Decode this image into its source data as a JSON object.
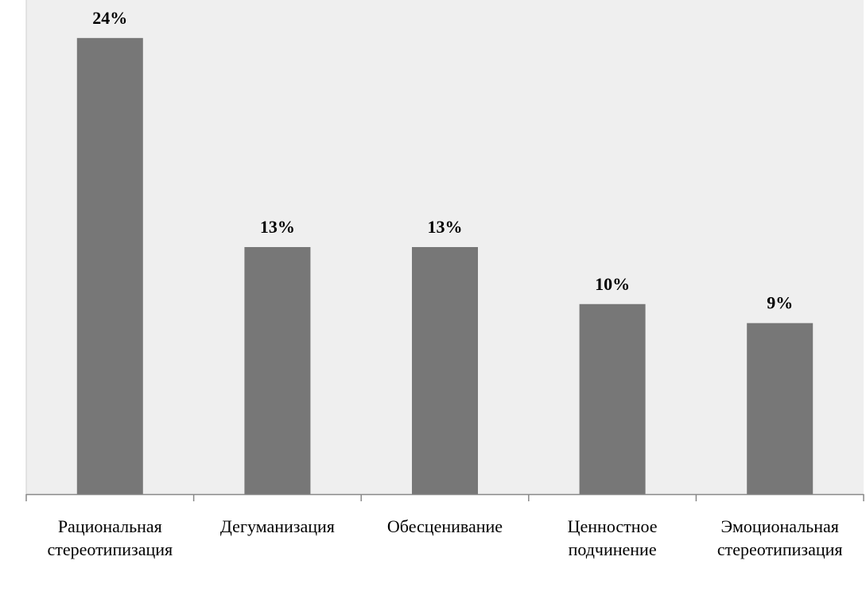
{
  "chart_data": {
    "type": "bar",
    "categories": [
      [
        "Рациональная",
        "стереотипизация"
      ],
      [
        "Дегуманизация"
      ],
      [
        "Обесценивание"
      ],
      [
        "Ценностное",
        "подчинение"
      ],
      [
        "Эмоциональная",
        "стереотипизация"
      ]
    ],
    "values": [
      24,
      13,
      13,
      10,
      9
    ],
    "data_labels": [
      "24%",
      "13%",
      "13%",
      "10%",
      "9%"
    ],
    "unit": "%",
    "ylim": [
      0,
      26
    ],
    "title": "",
    "xlabel": "",
    "ylabel": "",
    "grid": false,
    "legend": "none",
    "colors": {
      "plot_background": "#efefef",
      "bar": "#777777",
      "axis": "#888888",
      "text": "#000000"
    }
  }
}
